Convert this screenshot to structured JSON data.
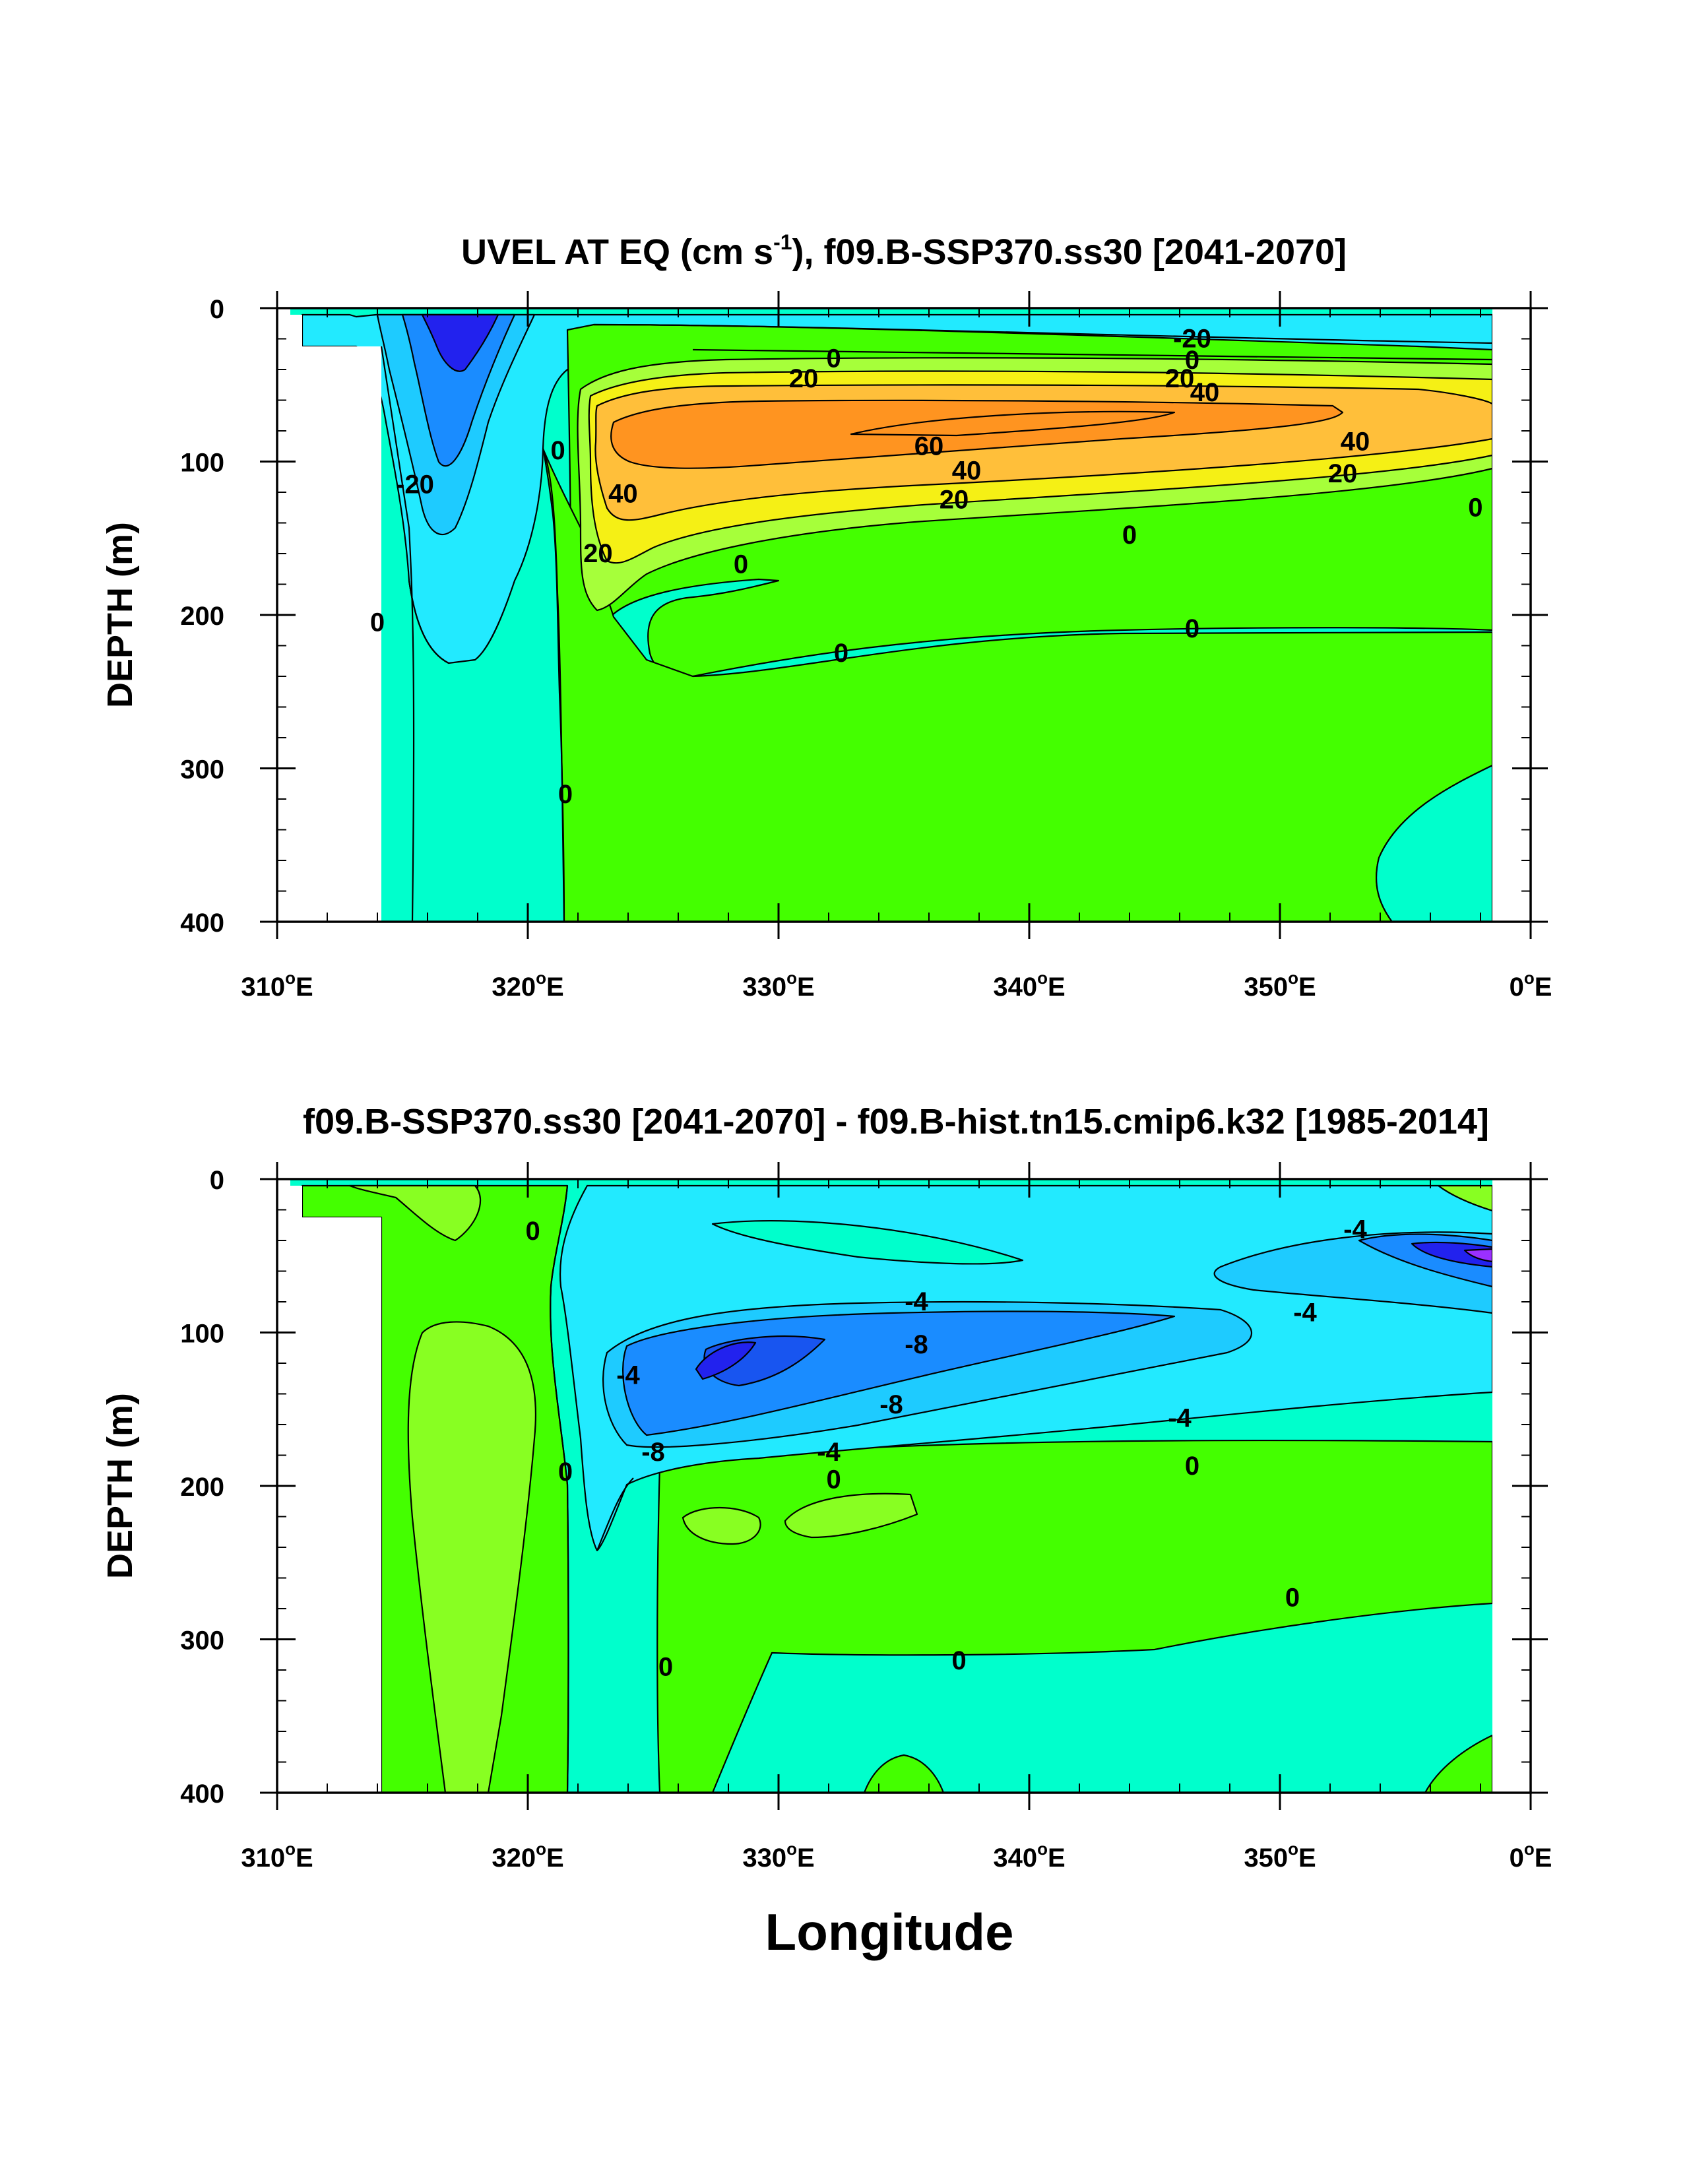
{
  "chart_data": [
    {
      "type": "contour",
      "title_main": "UVEL AT EQ (cm s",
      "title_exponent": "-1",
      "title_rest": "), f09.B-SSP370.ss30 [2041-2070]",
      "ylabel": "DEPTH (m)",
      "xlabel": "",
      "xlim": [
        310,
        360
      ],
      "ylim": [
        0,
        400
      ],
      "y_inverted": true,
      "x_ticks": [
        {
          "value": 310,
          "num": "310",
          "suffix": "E"
        },
        {
          "value": 320,
          "num": "320",
          "suffix": "E"
        },
        {
          "value": 330,
          "num": "330",
          "suffix": "E"
        },
        {
          "value": 340,
          "num": "340",
          "suffix": "E"
        },
        {
          "value": 350,
          "num": "350",
          "suffix": "E"
        },
        {
          "value": 360,
          "num": "0",
          "suffix": "E"
        }
      ],
      "y_ticks": [
        0,
        100,
        200,
        300,
        400
      ],
      "contour_labels": [
        {
          "text": "-20",
          "lon": 346.5,
          "depth": 20
        },
        {
          "text": "0",
          "lon": 346.5,
          "depth": 34
        },
        {
          "text": "20",
          "lon": 346,
          "depth": 46
        },
        {
          "text": "40",
          "lon": 347,
          "depth": 55
        },
        {
          "text": "0",
          "lon": 332.2,
          "depth": 33
        },
        {
          "text": "20",
          "lon": 331,
          "depth": 46
        },
        {
          "text": "60",
          "lon": 336,
          "depth": 90
        },
        {
          "text": "40",
          "lon": 337.5,
          "depth": 106
        },
        {
          "text": "40",
          "lon": 353,
          "depth": 87
        },
        {
          "text": "20",
          "lon": 352.5,
          "depth": 108
        },
        {
          "text": "20",
          "lon": 337,
          "depth": 125
        },
        {
          "text": "40",
          "lon": 323.8,
          "depth": 121
        },
        {
          "text": "20",
          "lon": 322.8,
          "depth": 160
        },
        {
          "text": "0",
          "lon": 321.2,
          "depth": 93
        },
        {
          "text": "-20",
          "lon": 315.5,
          "depth": 115
        },
        {
          "text": "0",
          "lon": 314,
          "depth": 205
        },
        {
          "text": "0",
          "lon": 344,
          "depth": 148
        },
        {
          "text": "0",
          "lon": 328.5,
          "depth": 167
        },
        {
          "text": "0",
          "lon": 332.5,
          "depth": 225
        },
        {
          "text": "0",
          "lon": 346.5,
          "depth": 209
        },
        {
          "text": "0",
          "lon": 357.8,
          "depth": 130
        },
        {
          "text": "0",
          "lon": 321.5,
          "depth": 317
        }
      ]
    },
    {
      "type": "contour",
      "title_main": "f09.B-SSP370.ss30 [2041-2070] - f09.B-hist.tn15.cmip6.k32 [1985-2014]",
      "title_exponent": "",
      "title_rest": "",
      "ylabel": "DEPTH (m)",
      "xlabel": "Longitude",
      "xlim": [
        310,
        360
      ],
      "ylim": [
        0,
        400
      ],
      "y_inverted": true,
      "x_ticks": [
        {
          "value": 310,
          "num": "310",
          "suffix": "E"
        },
        {
          "value": 320,
          "num": "320",
          "suffix": "E"
        },
        {
          "value": 330,
          "num": "330",
          "suffix": "E"
        },
        {
          "value": 340,
          "num": "340",
          "suffix": "E"
        },
        {
          "value": 350,
          "num": "350",
          "suffix": "E"
        },
        {
          "value": 360,
          "num": "0",
          "suffix": "E"
        }
      ],
      "y_ticks": [
        0,
        100,
        200,
        300,
        400
      ],
      "contour_labels": [
        {
          "text": "-4",
          "lon": 353,
          "depth": 33
        },
        {
          "text": "-4",
          "lon": 351,
          "depth": 87
        },
        {
          "text": "-4",
          "lon": 335.5,
          "depth": 80
        },
        {
          "text": "-8",
          "lon": 335.5,
          "depth": 108
        },
        {
          "text": "-8",
          "lon": 334.5,
          "depth": 147
        },
        {
          "text": "-4",
          "lon": 324,
          "depth": 128
        },
        {
          "text": "-8",
          "lon": 325,
          "depth": 178
        },
        {
          "text": "-4",
          "lon": 332,
          "depth": 178
        },
        {
          "text": "-4",
          "lon": 346,
          "depth": 156
        },
        {
          "text": "0",
          "lon": 332.2,
          "depth": 196
        },
        {
          "text": "0",
          "lon": 346.5,
          "depth": 187
        },
        {
          "text": "0",
          "lon": 350.5,
          "depth": 273
        },
        {
          "text": "0",
          "lon": 337.2,
          "depth": 314
        },
        {
          "text": "0",
          "lon": 325.5,
          "depth": 318
        },
        {
          "text": "0",
          "lon": 321.5,
          "depth": 191
        },
        {
          "text": "0",
          "lon": 320.2,
          "depth": 34
        }
      ]
    }
  ]
}
